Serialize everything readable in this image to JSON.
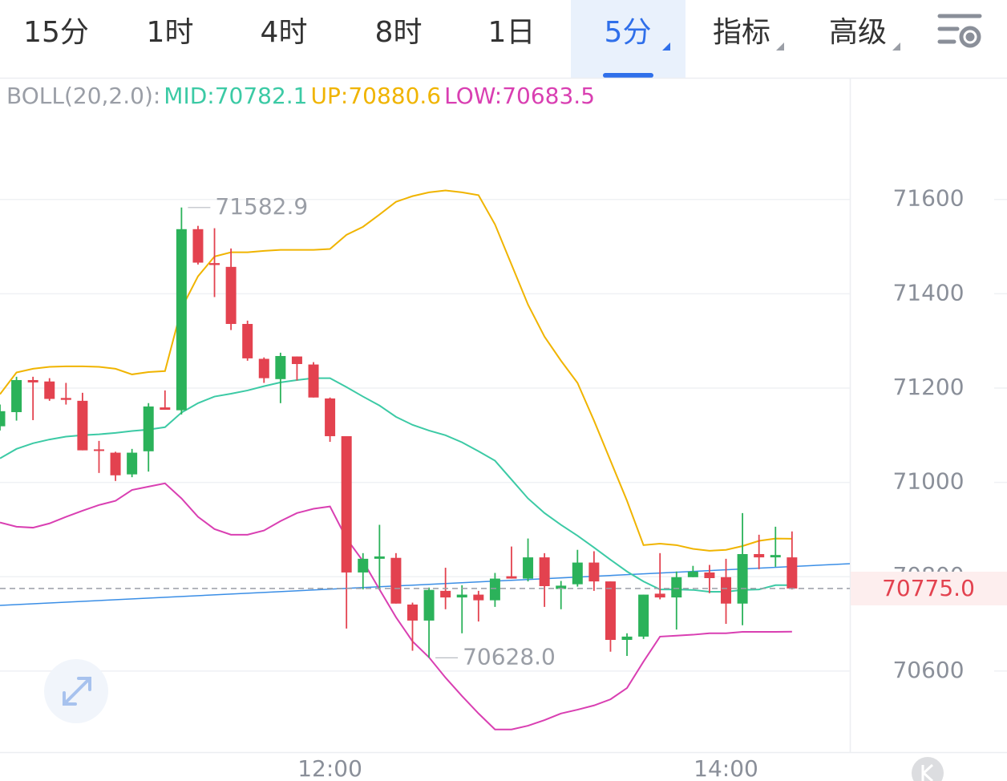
{
  "tabs": [
    {
      "label": "15分",
      "active": false,
      "dropdown": false
    },
    {
      "label": "1时",
      "active": false,
      "dropdown": false
    },
    {
      "label": "4时",
      "active": false,
      "dropdown": false
    },
    {
      "label": "8时",
      "active": false,
      "dropdown": false
    },
    {
      "label": "1日",
      "active": false,
      "dropdown": false
    },
    {
      "label": "5分",
      "active": true,
      "dropdown": true
    },
    {
      "label": "指标",
      "active": false,
      "dropdown": true
    },
    {
      "label": "高级",
      "active": false,
      "dropdown": true
    }
  ],
  "chart_data": {
    "type": "candlestick",
    "indicator_label": "BOLL(20,2.0):",
    "indicator_label_color": "#9a9ea6",
    "categories": [
      null,
      null,
      null,
      null,
      null,
      null,
      null,
      null,
      null,
      null,
      null,
      null,
      null,
      null,
      null,
      null,
      null,
      null,
      null,
      null,
      "12:00",
      null,
      null,
      null,
      null,
      null,
      null,
      null,
      null,
      null,
      null,
      null,
      null,
      null,
      null,
      null,
      null,
      null,
      null,
      null,
      null,
      null,
      null,
      null,
      "14:00",
      null,
      null,
      null,
      null
    ],
    "open": [
      71119,
      71149,
      71217,
      71214,
      71179,
      71173,
      71070,
      71063,
      71017,
      71066,
      71159,
      71153,
      71537,
      71465,
      71457,
      71336,
      71262,
      71219,
      71267,
      71250,
      71178,
      71098,
      70809,
      70838,
      70840,
      70741,
      70707,
      70770,
      70756,
      70762,
      70750,
      70801,
      70796,
      70841,
      70774,
      70784,
      70830,
      70790,
      70666,
      70673,
      70764,
      70756,
      70799,
      70809,
      70799,
      70743,
      70848,
      70841,
      70841
    ],
    "high": [
      71165,
      71224,
      71224,
      71221,
      71211,
      71190,
      71088,
      71065,
      71071,
      71168,
      71195,
      71582.9,
      71544,
      71539,
      71496,
      71343,
      71265,
      71275,
      71267,
      71255,
      71180,
      71098,
      70850,
      70910,
      70850,
      70745,
      70777,
      70819,
      70782,
      70770,
      70808,
      70864,
      70881,
      70850,
      70791,
      70857,
      70854,
      70790,
      70680,
      70762,
      70850,
      70811,
      70823,
      70825,
      70838,
      70935,
      70889,
      70906,
      70896
    ],
    "low": [
      71110,
      71131,
      71132,
      71173,
      71165,
      71068,
      71020,
      71003,
      71011,
      71023,
      71154,
      71144,
      71462,
      71393,
      71323,
      71258,
      71211,
      71168,
      71216,
      71180,
      71086,
      70690,
      70773,
      70773,
      70743,
      70643,
      70628.0,
      70731,
      70680,
      70705,
      70736,
      70796,
      70790,
      70736,
      70731,
      70779,
      70770,
      70641,
      70632,
      70668,
      70752,
      70688,
      70799,
      70765,
      70700,
      70697,
      70816,
      70821,
      70773
    ],
    "close": [
      71151,
      71217,
      71212,
      71177,
      71175,
      71068,
      71067,
      71015,
      71063,
      71161,
      71154,
      71537,
      71466,
      71461,
      71336,
      71263,
      71221,
      71268,
      71251,
      71180,
      71098,
      70809,
      70838,
      70843,
      70743,
      70707,
      70772,
      70756,
      70762,
      70750,
      70796,
      70796,
      70841,
      70780,
      70781,
      70830,
      70790,
      70666,
      70673,
      70762,
      70756,
      70799,
      70811,
      70797,
      70743,
      70848,
      70841,
      70846,
      70775
    ],
    "up_color": "#2bb25a",
    "down_color": "#e3424f",
    "overlays": [
      {
        "label": "MID:70782.1",
        "color": "#3ccaa5",
        "values": [
          71051,
          71071,
          71083,
          71091,
          71097,
          71100,
          71102,
          71105,
          71109,
          71112,
          71117,
          71148,
          71168,
          71182,
          71188,
          71195,
          71204,
          71212,
          71217,
          71221,
          71221,
          71202,
          71182,
          71163,
          71139,
          71122,
          71110,
          71100,
          71085,
          71066,
          71046,
          71006,
          70966,
          70935,
          70910,
          70887,
          70862,
          70836,
          70811,
          70790,
          70773,
          70773,
          70772,
          70768,
          70768,
          70772,
          70773,
          70782,
          70782.1
        ]
      },
      {
        "label": "UP:70880.6",
        "color": "#f0b400",
        "values": [
          71187,
          71233,
          71241,
          71245,
          71246,
          71246,
          71245,
          71241,
          71229,
          71234,
          71236,
          71369,
          71437,
          71479,
          71488,
          71488,
          71491,
          71493,
          71493,
          71493,
          71495,
          71525,
          71542,
          71568,
          71595,
          71607,
          71615,
          71619,
          71615,
          71609,
          71547,
          71462,
          71377,
          71309,
          71258,
          71211,
          71131,
          71046,
          70961,
          70867,
          70870,
          70867,
          70859,
          70855,
          70857,
          70865,
          70876,
          70881,
          70880.6
        ]
      },
      {
        "label": "LOW:70683.5",
        "color": "#d93fb2",
        "values": [
          70915,
          70906,
          70904,
          70913,
          70927,
          70940,
          70952,
          70961,
          70984,
          70991,
          70998,
          70966,
          70927,
          70901,
          70889,
          70889,
          70898,
          70918,
          70935,
          70944,
          70949,
          70881,
          70833,
          70773,
          70714,
          70663,
          70629,
          70586,
          70547,
          70510,
          70476,
          70476,
          70484,
          70496,
          70510,
          70518,
          70527,
          70540,
          70564,
          70620,
          70673,
          70675,
          70677,
          70680,
          70680,
          70683,
          70683,
          70683,
          70683.5
        ]
      }
    ],
    "ylim": [
      70428,
      71858
    ],
    "yticks": [
      71600,
      71400,
      71200,
      71000,
      70800,
      70600
    ],
    "grid": true,
    "last_price": {
      "value": 70775,
      "label": "70775.0"
    },
    "annotations": [
      {
        "label": "71582.9",
        "value": 71582.9
      },
      {
        "label": "70628.0",
        "value": 70628.0
      }
    ]
  }
}
